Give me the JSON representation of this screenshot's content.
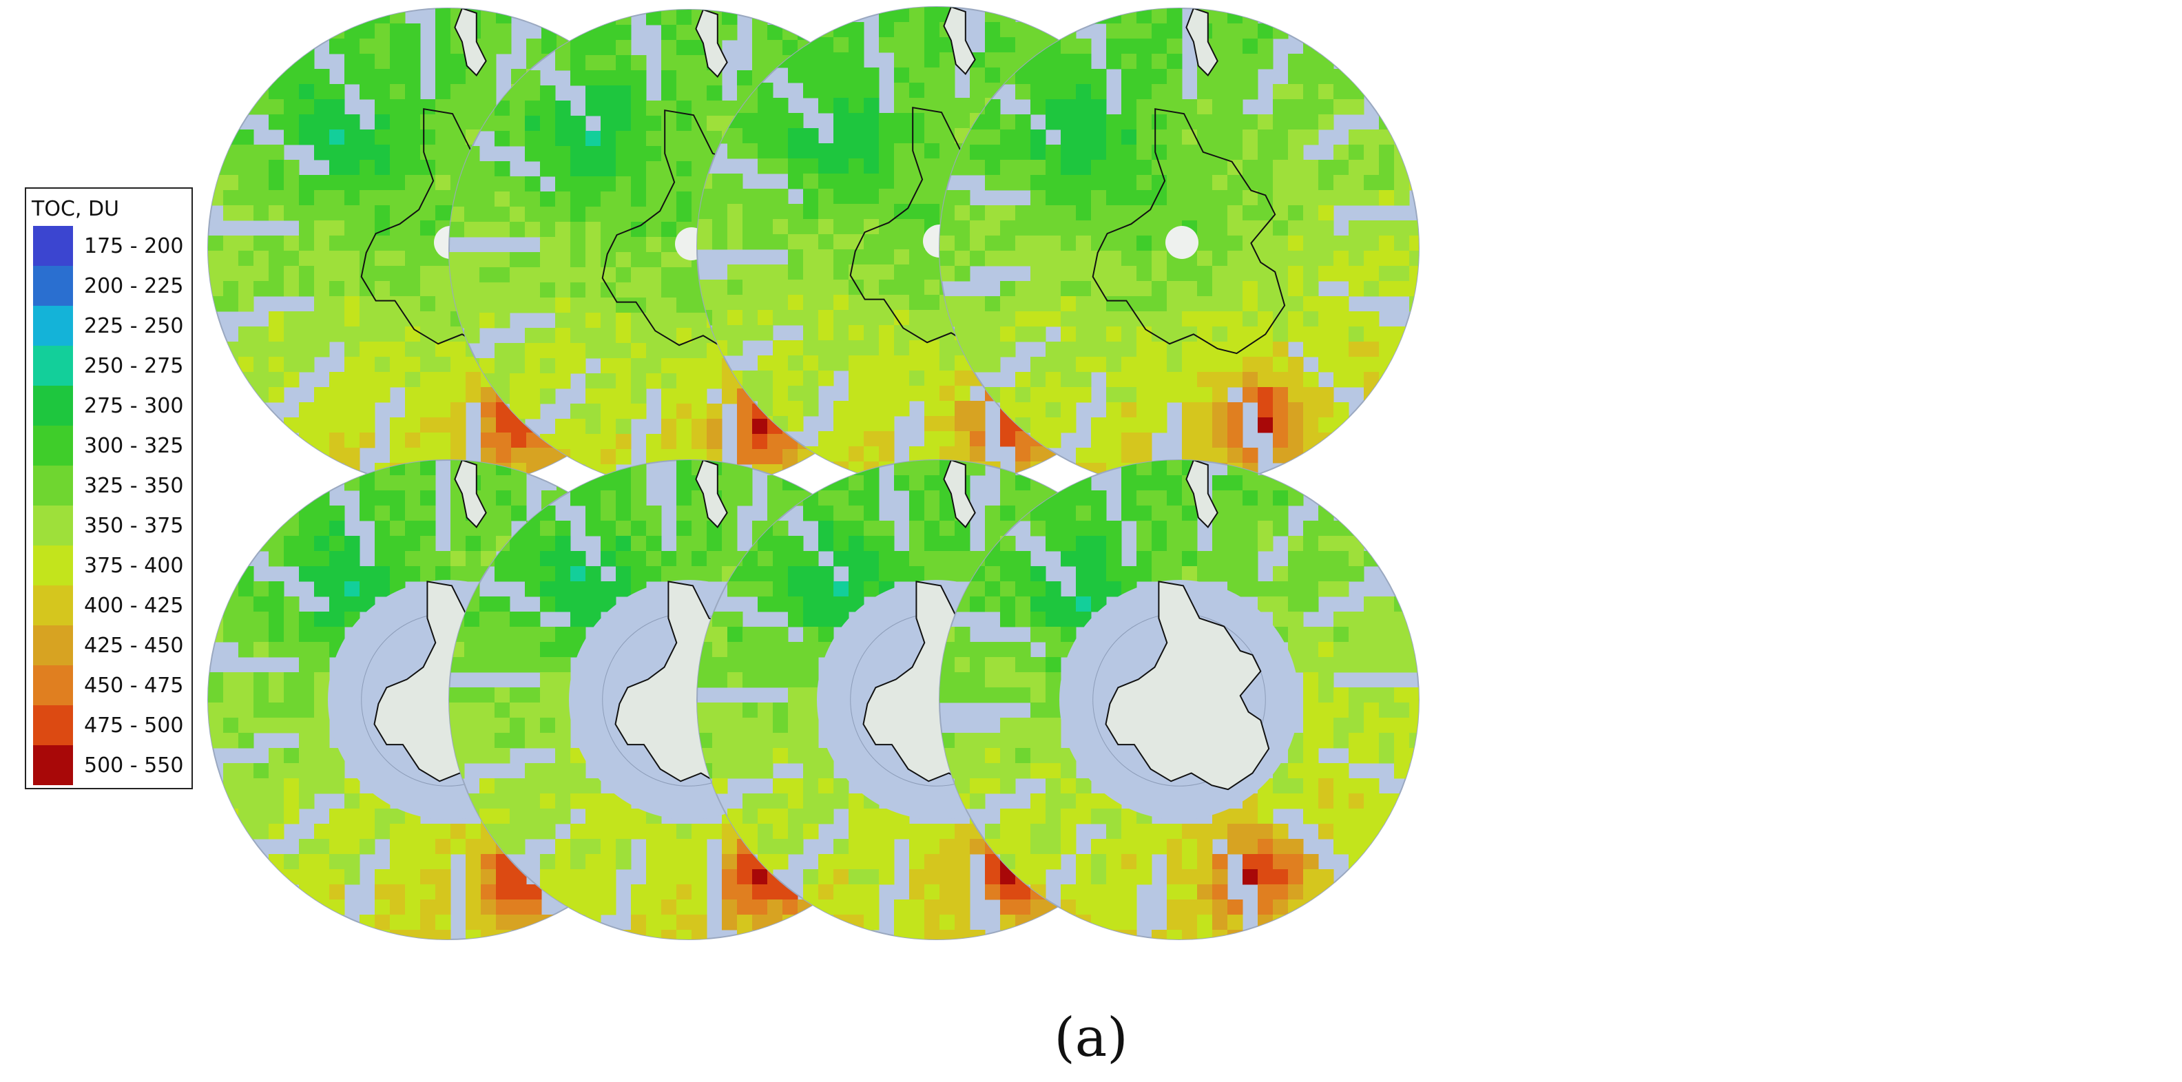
{
  "legend": {
    "title": "TOC, DU",
    "classes": [
      {
        "label": "175 - 200",
        "color": "#3b45d0"
      },
      {
        "label": "200 - 225",
        "color": "#2a6fd0"
      },
      {
        "label": "225 - 250",
        "color": "#14b3d8"
      },
      {
        "label": "250 - 275",
        "color": "#13cf9a"
      },
      {
        "label": "275 - 300",
        "color": "#1ec63e"
      },
      {
        "label": "300 - 325",
        "color": "#3fcd2a"
      },
      {
        "label": "325 - 350",
        "color": "#6fd630"
      },
      {
        "label": "350 - 375",
        "color": "#9ee03a"
      },
      {
        "label": "375 - 400",
        "color": "#c3e41c"
      },
      {
        "label": "400 - 425",
        "color": "#d5c61e"
      },
      {
        "label": "425 - 450",
        "color": "#d7a322"
      },
      {
        "label": "450 - 475",
        "color": "#e07f20"
      },
      {
        "label": "475 - 500",
        "color": "#dc4a12"
      },
      {
        "label": "500 - 550",
        "color": "#a80808"
      }
    ]
  },
  "colors": {
    "nodata": "#b7c7e3",
    "land": "#e2e8e2",
    "coast": "#111111"
  },
  "maps": [
    {
      "row": "top",
      "index": 1,
      "polar_hole": true
    },
    {
      "row": "top",
      "index": 2,
      "polar_hole": true
    },
    {
      "row": "top",
      "index": 3,
      "polar_hole": true
    },
    {
      "row": "top",
      "index": 4,
      "polar_hole": true
    },
    {
      "row": "bottom",
      "index": 1,
      "antarctica_masked": true
    },
    {
      "row": "bottom",
      "index": 2,
      "antarctica_masked": true
    },
    {
      "row": "bottom",
      "index": 3,
      "antarctica_masked": true
    },
    {
      "row": "bottom",
      "index": 4,
      "antarctica_masked": true
    }
  ],
  "caption": "(a)"
}
